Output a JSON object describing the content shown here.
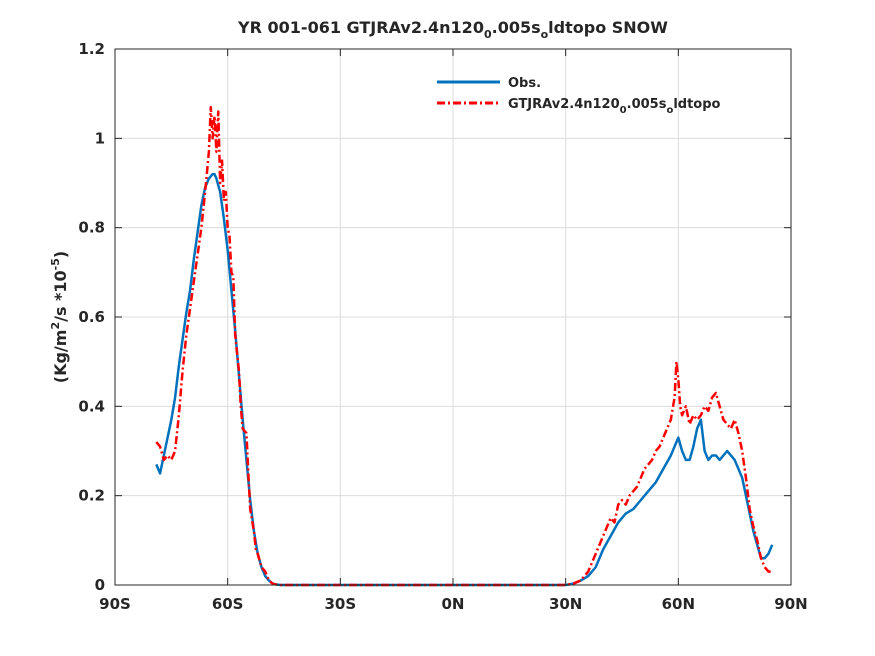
{
  "chart_data": {
    "type": "line",
    "title": "YR 001-061 GTJRAv2.4n120",
    "title_sub": "0",
    "title_mid": ".005s",
    "title_sub2": "o",
    "title_end": "ldtopo SNOW",
    "ylabel_pre": "(Kg/m",
    "ylabel_sup": "2",
    "ylabel_mid": "/s *10",
    "ylabel_sup2": "-5",
    "ylabel_end": ")",
    "xlim": [
      -90,
      90
    ],
    "ylim": [
      0,
      1.2
    ],
    "xticks": [
      -90,
      -60,
      -30,
      0,
      30,
      60,
      90
    ],
    "xtick_labels": [
      "90S",
      "60S",
      "30S",
      "0N",
      "30N",
      "60N",
      "90N"
    ],
    "yticks": [
      0,
      0.2,
      0.4,
      0.6,
      0.8,
      1.0,
      1.2
    ],
    "ytick_labels": [
      "0",
      "0.2",
      "0.4",
      "0.6",
      "0.8",
      "1",
      "1.2"
    ],
    "grid": true,
    "legend_position": "top-right",
    "series": [
      {
        "name": "Obs.",
        "color": "#0072bd",
        "style": "solid",
        "x": [
          -79,
          -78,
          -77,
          -76,
          -75,
          -74,
          -73,
          -72,
          -71,
          -70,
          -69,
          -68,
          -67,
          -66,
          -65,
          -64,
          -63.5,
          -63,
          -62,
          -61,
          -60,
          -59,
          -58,
          -57,
          -56,
          -55,
          -54,
          -53,
          -52,
          -51,
          -50,
          -49,
          -48,
          -47,
          -46,
          -45,
          -40,
          -30,
          -20,
          -10,
          0,
          10,
          20,
          30,
          32,
          34,
          36,
          38,
          40,
          42,
          44,
          46,
          48,
          50,
          52,
          54,
          56,
          58,
          59,
          60,
          61,
          62,
          63,
          64,
          65,
          66,
          67,
          68,
          69,
          70,
          71,
          72,
          73,
          74,
          75,
          76,
          77,
          78,
          79,
          80,
          81,
          82,
          83,
          84,
          85
        ],
        "y": [
          0.27,
          0.25,
          0.29,
          0.33,
          0.37,
          0.42,
          0.49,
          0.55,
          0.61,
          0.66,
          0.73,
          0.79,
          0.85,
          0.89,
          0.91,
          0.92,
          0.92,
          0.91,
          0.88,
          0.82,
          0.75,
          0.66,
          0.57,
          0.47,
          0.37,
          0.28,
          0.19,
          0.12,
          0.07,
          0.04,
          0.02,
          0.01,
          0.003,
          0.001,
          0.0,
          0.0,
          0.0,
          0.0,
          0.0,
          0.0,
          0.0,
          0.0,
          0.0,
          0.0,
          0.003,
          0.01,
          0.02,
          0.04,
          0.08,
          0.11,
          0.14,
          0.16,
          0.17,
          0.19,
          0.21,
          0.23,
          0.26,
          0.29,
          0.31,
          0.33,
          0.3,
          0.28,
          0.28,
          0.31,
          0.35,
          0.37,
          0.3,
          0.28,
          0.29,
          0.29,
          0.28,
          0.29,
          0.3,
          0.29,
          0.28,
          0.26,
          0.24,
          0.2,
          0.16,
          0.12,
          0.09,
          0.06,
          0.06,
          0.07,
          0.09
        ]
      },
      {
        "name": "GTJRAv2.4n120",
        "name_sub": "0",
        "name_mid": ".005s",
        "name_sub2": "o",
        "name_end": "ldtopo",
        "color": "#ff0000",
        "style": "dashed",
        "x": [
          -79,
          -78,
          -77,
          -76,
          -75,
          -74,
          -73,
          -72,
          -71,
          -70,
          -69,
          -68,
          -67,
          -66,
          -65,
          -64.5,
          -64,
          -63.5,
          -63,
          -62.5,
          -62,
          -61.5,
          -61,
          -60.5,
          -60,
          -59.5,
          -59,
          -58.5,
          -58,
          -57,
          -56.5,
          -56,
          -55,
          -54.5,
          -54,
          -53,
          -52.5,
          -52,
          -51,
          -50,
          -49,
          -48,
          -47,
          -46,
          -45,
          -40,
          -30,
          -20,
          -10,
          0,
          10,
          20,
          30,
          32,
          34,
          36,
          38,
          40,
          41,
          42,
          43,
          44,
          45,
          46,
          47,
          48,
          49,
          50,
          51,
          52,
          53,
          54,
          55,
          56,
          57,
          58,
          59,
          59.5,
          60,
          60.5,
          61,
          62,
          63,
          64,
          65,
          66,
          67,
          68,
          69,
          70,
          71,
          72,
          73,
          74,
          75,
          76,
          77,
          78,
          79,
          80,
          81,
          82,
          83,
          84,
          85
        ],
        "y": [
          0.32,
          0.31,
          0.28,
          0.29,
          0.28,
          0.3,
          0.38,
          0.48,
          0.56,
          0.62,
          0.68,
          0.74,
          0.8,
          0.88,
          0.97,
          1.07,
          1.0,
          1.05,
          0.97,
          1.06,
          0.9,
          0.95,
          0.86,
          0.88,
          0.8,
          0.78,
          0.7,
          0.69,
          0.56,
          0.48,
          0.4,
          0.35,
          0.34,
          0.25,
          0.17,
          0.12,
          0.08,
          0.07,
          0.04,
          0.03,
          0.01,
          0.003,
          0.001,
          0.0,
          0.0,
          0.0,
          0.0,
          0.0,
          0.0,
          0.0,
          0.0,
          0.0,
          0.0,
          0.003,
          0.01,
          0.03,
          0.07,
          0.11,
          0.13,
          0.15,
          0.14,
          0.18,
          0.19,
          0.18,
          0.2,
          0.21,
          0.22,
          0.24,
          0.26,
          0.27,
          0.28,
          0.3,
          0.31,
          0.33,
          0.35,
          0.37,
          0.42,
          0.5,
          0.46,
          0.4,
          0.38,
          0.4,
          0.36,
          0.38,
          0.37,
          0.38,
          0.4,
          0.39,
          0.42,
          0.43,
          0.4,
          0.37,
          0.36,
          0.35,
          0.37,
          0.34,
          0.3,
          0.24,
          0.17,
          0.13,
          0.1,
          0.06,
          0.04,
          0.03,
          0.03
        ]
      }
    ]
  }
}
